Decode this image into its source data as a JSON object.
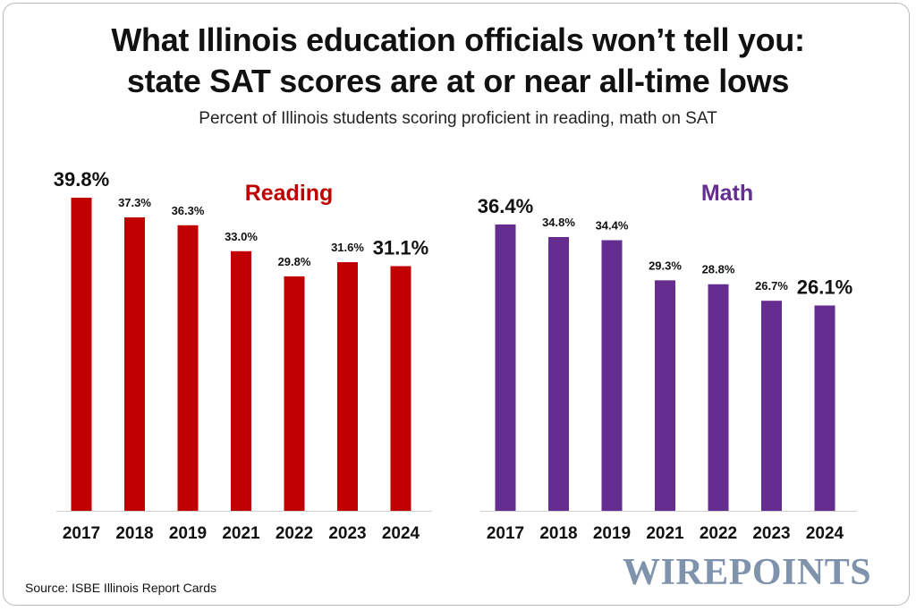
{
  "title_lines": [
    "What Illinois education officials won’t tell you:",
    "state SAT scores are at or near all-time lows"
  ],
  "subtitle": "Percent of Illinois students scoring proficient in reading, math on SAT",
  "source": "Source: ISBE Illinois Report Cards",
  "logo_text": "WIREPOINTS",
  "colors": {
    "reading": "#c00000",
    "math": "#662d91",
    "logo": "#7f93ad",
    "axis": "#cfcfcf"
  },
  "chart_data": [
    {
      "type": "bar",
      "title": "Reading",
      "categories": [
        "2017",
        "2018",
        "2019",
        "2021",
        "2022",
        "2023",
        "2024"
      ],
      "values": [
        39.8,
        37.3,
        36.3,
        33.0,
        29.8,
        31.6,
        31.1
      ],
      "value_labels": [
        "39.8%",
        "37.3%",
        "36.3%",
        "33.0%",
        "29.8%",
        "31.6%",
        "31.1%"
      ],
      "emphasized_labels": [
        0,
        6
      ],
      "ylim": [
        0,
        39.8
      ],
      "grid": false,
      "xlabel": "",
      "ylabel": ""
    },
    {
      "type": "bar",
      "title": "Math",
      "categories": [
        "2017",
        "2018",
        "2019",
        "2021",
        "2022",
        "2023",
        "2024"
      ],
      "values": [
        36.4,
        34.8,
        34.4,
        29.3,
        28.8,
        26.7,
        26.1
      ],
      "value_labels": [
        "36.4%",
        "34.8%",
        "34.4%",
        "29.3%",
        "28.8%",
        "26.7%",
        "26.1%"
      ],
      "emphasized_labels": [
        0,
        6
      ],
      "ylim": [
        0,
        39.8
      ],
      "grid": false,
      "xlabel": "",
      "ylabel": ""
    }
  ]
}
